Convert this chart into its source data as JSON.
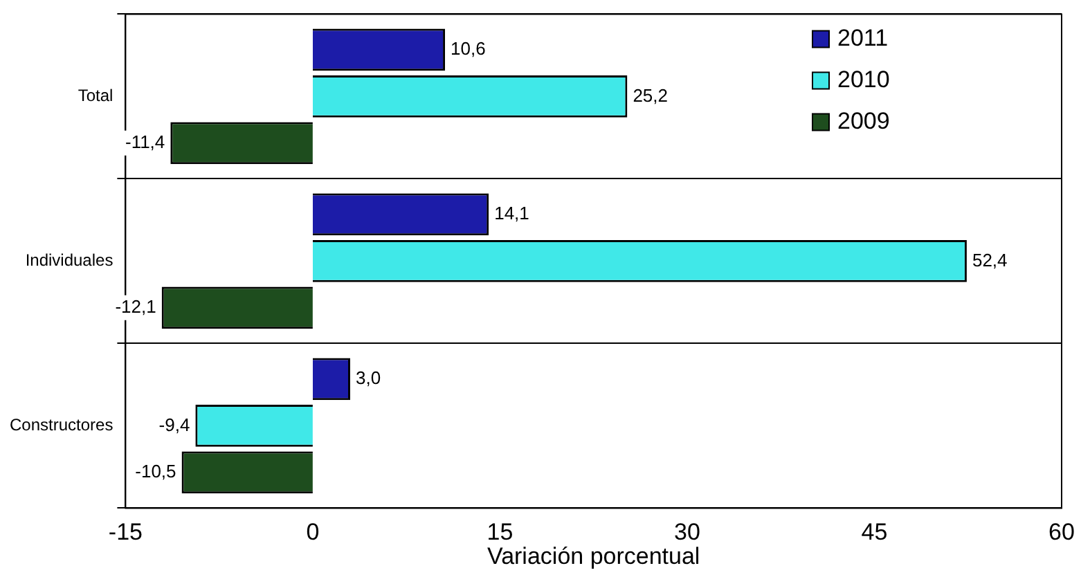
{
  "chart_data": {
    "type": "bar",
    "orientation": "horizontal",
    "xlabel": "Variación porcentual",
    "categories": [
      "Total",
      "Individuales",
      "Constructores"
    ],
    "series": [
      {
        "name": "2011",
        "color": "#1c1ca8",
        "values": [
          10.6,
          14.1,
          3.0
        ],
        "value_labels": [
          "10,6",
          "14,1",
          "3,0"
        ]
      },
      {
        "name": "2010",
        "color": "#40e8e8",
        "values": [
          25.2,
          52.4,
          -9.4
        ],
        "value_labels": [
          "25,2",
          "52,4",
          "-9,4"
        ]
      },
      {
        "name": "2009",
        "color": "#1e4d1e",
        "values": [
          -11.4,
          -12.1,
          -10.5
        ],
        "value_labels": [
          "-11,4",
          "-12,1",
          "-10,5"
        ]
      }
    ],
    "xlim": [
      -15,
      60
    ],
    "xticks": [
      -15,
      0,
      15,
      30,
      45,
      60
    ],
    "grid": "y",
    "legend": "top right"
  }
}
